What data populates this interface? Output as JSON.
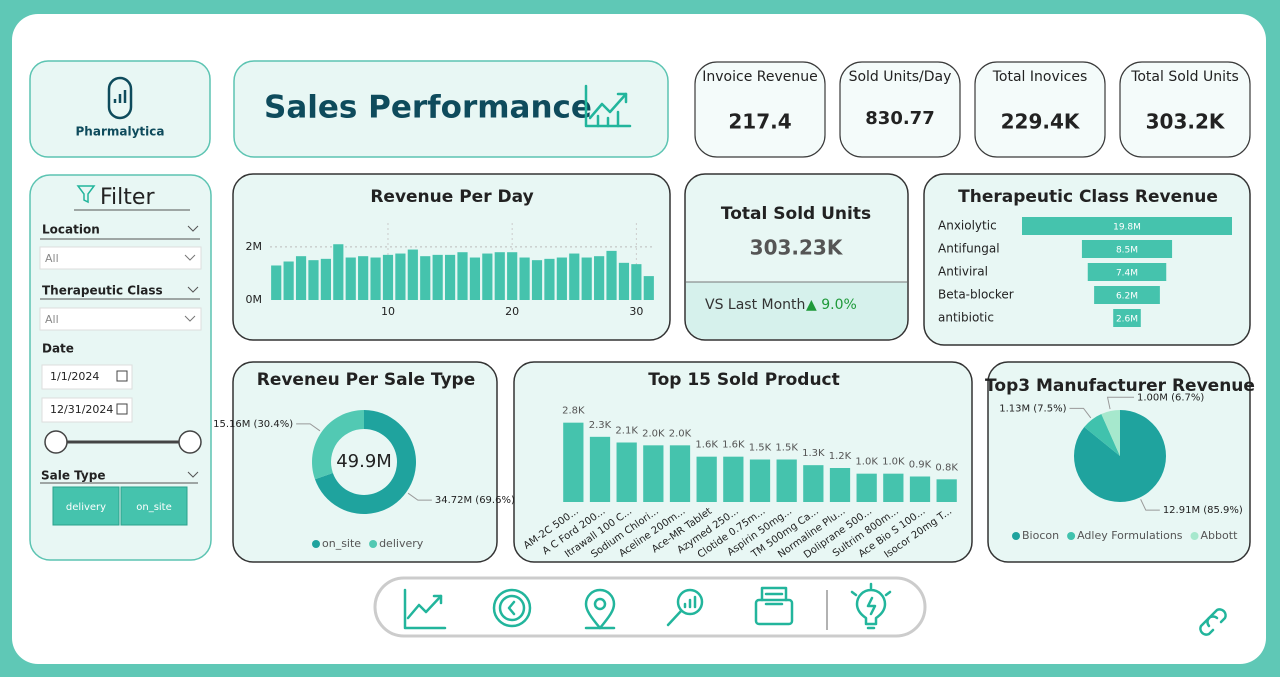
{
  "logo": {
    "name": "Pharmalytica"
  },
  "header": {
    "title": "Sales Performance"
  },
  "kpis": [
    {
      "label": "Invoice Revenue",
      "value": "217.4"
    },
    {
      "label": "Sold Units/Day",
      "value": "830.77"
    },
    {
      "label": "Total Inovices",
      "value": "229.4K"
    },
    {
      "label": "Total Sold Units",
      "value": "303.2K"
    }
  ],
  "card": {
    "title": "Total Sold Units",
    "value": "303.23K",
    "comparison": "VS Last Month",
    "change": "▲ 9.0%"
  },
  "filter": {
    "title": "Filter",
    "location": {
      "label": "Location",
      "value": "All"
    },
    "therapeutic_class": {
      "label": "Therapeutic Class",
      "value": "All"
    },
    "date": {
      "label": "Date",
      "start": "1/1/2024",
      "end": "12/31/2024"
    },
    "sale_type": {
      "label": "Sale Type",
      "options": [
        "delivery",
        "on_site"
      ]
    }
  },
  "chart_data": [
    {
      "type": "bar",
      "title": "Revenue Per Day",
      "x": [
        1,
        2,
        3,
        4,
        5,
        6,
        7,
        8,
        9,
        10,
        11,
        12,
        13,
        14,
        15,
        16,
        17,
        18,
        19,
        20,
        21,
        22,
        23,
        24,
        25,
        26,
        27,
        28,
        29,
        30,
        31
      ],
      "values": [
        1.3,
        1.45,
        1.65,
        1.5,
        1.55,
        2.1,
        1.6,
        1.65,
        1.6,
        1.7,
        1.75,
        1.9,
        1.65,
        1.7,
        1.7,
        1.8,
        1.6,
        1.75,
        1.8,
        1.8,
        1.6,
        1.5,
        1.55,
        1.6,
        1.75,
        1.6,
        1.65,
        1.85,
        1.4,
        1.35,
        0.9
      ],
      "color": "#45c3ad",
      "xlim": [
        0.5,
        31.5
      ],
      "xticks": [
        10,
        20,
        30
      ],
      "ylim": [
        0,
        2.9
      ],
      "yticks": [
        {
          "value": 0,
          "label": "0M"
        },
        {
          "value": 2,
          "label": "2M"
        }
      ],
      "grid": true
    },
    {
      "type": "funnel",
      "title": "Therapeutic Class Revenue",
      "categories": [
        "Anxiolytic",
        "Antifungal",
        "Antiviral",
        "Beta-blocker",
        "antibiotic"
      ],
      "values": [
        19.8,
        8.5,
        7.4,
        6.2,
        2.6
      ],
      "value_labels": [
        "19.8M",
        "8.5M",
        "7.4M",
        "6.2M",
        "2.6M"
      ],
      "color": "#45c3ad"
    },
    {
      "type": "donut",
      "title": "Reveneu Per Sale Type",
      "center_label": "49.9M",
      "categories": [
        "on_site",
        "delivery"
      ],
      "values": [
        34.72,
        15.16
      ],
      "value_labels": [
        "34.72M (69.6%)",
        "15.16M (30.4%)"
      ],
      "colors": [
        "#1fa39e",
        "#52c9b3"
      ]
    },
    {
      "type": "bar",
      "title": "Top 15 Sold Product",
      "categories": [
        "AM-2C 500...",
        "A C Ford 200...",
        "Itrawall 100 C...",
        "Sodium Chlori...",
        "Aceline 200m...",
        "Ace-MR Tablet",
        "Azymed 250...",
        "Clotide 0.75m...",
        "Aspirin 50mg...",
        "TM 500mg Ca...",
        "Normaline Plu...",
        "Doliprane 500...",
        "Sultrim 800m...",
        "Ace Bio S 100...",
        "Isocor 20mg T..."
      ],
      "values": [
        2.8,
        2.3,
        2.1,
        2.0,
        2.0,
        1.6,
        1.6,
        1.5,
        1.5,
        1.3,
        1.2,
        1.0,
        1.0,
        0.9,
        0.8
      ],
      "value_labels": [
        "2.8K",
        "2.3K",
        "2.1K",
        "2.0K",
        "2.0K",
        "1.6K",
        "1.6K",
        "1.5K",
        "1.5K",
        "1.3K",
        "1.2K",
        "1.0K",
        "1.0K",
        "0.9K",
        "0.8K"
      ],
      "color": "#45c3ad",
      "ylim": [
        0,
        3
      ]
    },
    {
      "type": "pie",
      "title": "Top3 Manufacturer Revenue",
      "categories": [
        "Biocon",
        "Adley Formulations",
        "Abbott"
      ],
      "values": [
        12.91,
        1.13,
        1.0
      ],
      "value_labels": [
        "12.91M (85.9%)",
        "1.13M (7.5%)",
        "1.00M (6.7%)"
      ],
      "colors": [
        "#1fa39e",
        "#40c2ad",
        "#a6e8cd"
      ]
    }
  ]
}
